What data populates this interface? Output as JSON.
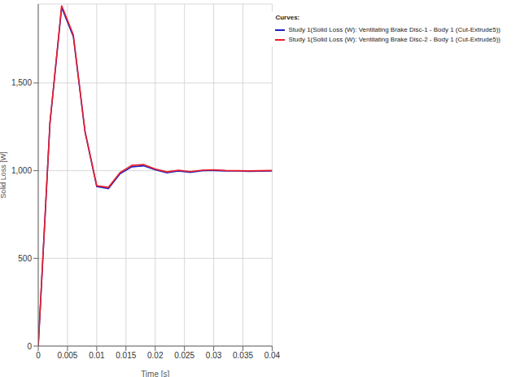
{
  "chart_data": {
    "type": "line",
    "x_label": "Time [s]",
    "y_label": "Solid Loss [W]",
    "legend_title": "Curves:",
    "x": [
      0,
      0.002,
      0.004,
      0.006,
      0.008,
      0.01,
      0.012,
      0.014,
      0.016,
      0.018,
      0.02,
      0.022,
      0.024,
      0.026,
      0.028,
      0.03,
      0.032,
      0.034,
      0.036,
      0.038,
      0.04
    ],
    "series": [
      {
        "name": "Study 1(Solid Loss (W): Ventilating Brake Disc-1 - Body 1 (Cut-Extrude5))",
        "color": "#2020c0",
        "values": [
          0,
          1270,
          1930,
          1765,
          1220,
          910,
          898,
          983,
          1022,
          1028,
          1005,
          988,
          998,
          990,
          1000,
          1001,
          999,
          998,
          996,
          997,
          998
        ]
      },
      {
        "name": "Study 1(Solid Loss (W): Ventilating Brake Disc-2 - Body 1 (Cut-Extrude5))",
        "color": "#e8202a",
        "values": [
          0,
          1272,
          1942,
          1775,
          1225,
          915,
          905,
          990,
          1030,
          1035,
          1010,
          993,
          1003,
          995,
          1003,
          1005,
          1001,
          1000,
          999,
          1000,
          1001
        ]
      }
    ],
    "xlim": [
      0,
      0.04
    ],
    "xticks": [
      0,
      0.005,
      0.01,
      0.015,
      0.02,
      0.025,
      0.03,
      0.035,
      0.04
    ],
    "ylim": [
      0,
      1950
    ],
    "yticks": [
      0,
      500,
      {
        "value": 1000,
        "label": "1,000"
      },
      {
        "value": 1500,
        "label": "1,500"
      }
    ],
    "grid": true,
    "legend": "upper right"
  }
}
